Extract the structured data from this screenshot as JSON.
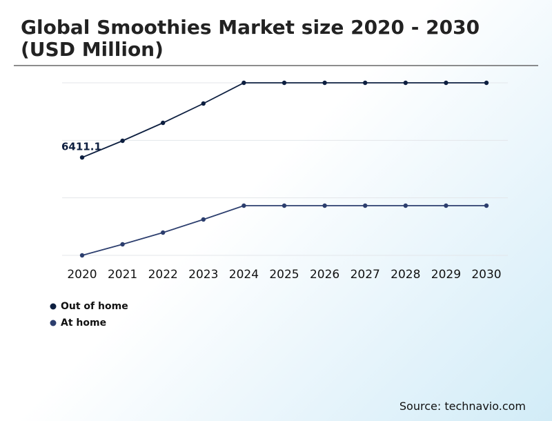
{
  "chart_data": {
    "type": "line",
    "title": "Global Smoothies Market size 2020 - 2030 (USD Million)",
    "source": "Source: technavio.com",
    "x": [
      2020,
      2021,
      2022,
      2023,
      2024,
      2025,
      2026,
      2027,
      2028,
      2029,
      2030
    ],
    "ylim": [
      0,
      11300
    ],
    "grid": true,
    "series": [
      {
        "name": "Out of home",
        "color": "#0d1f40",
        "values": [
          6411.1,
          7503,
          8678,
          9944,
          11300,
          11300,
          11300,
          11300,
          11300,
          11300,
          11300
        ],
        "value_labels": [
          "6411.1",
          null,
          null,
          null,
          null,
          null,
          null,
          null,
          null,
          null,
          null
        ]
      },
      {
        "name": "At home",
        "color": "#2c3e6e",
        "values": [
          0,
          723,
          1492,
          2350,
          3254,
          3254,
          3254,
          3254,
          3254,
          3254,
          3254
        ]
      }
    ]
  }
}
